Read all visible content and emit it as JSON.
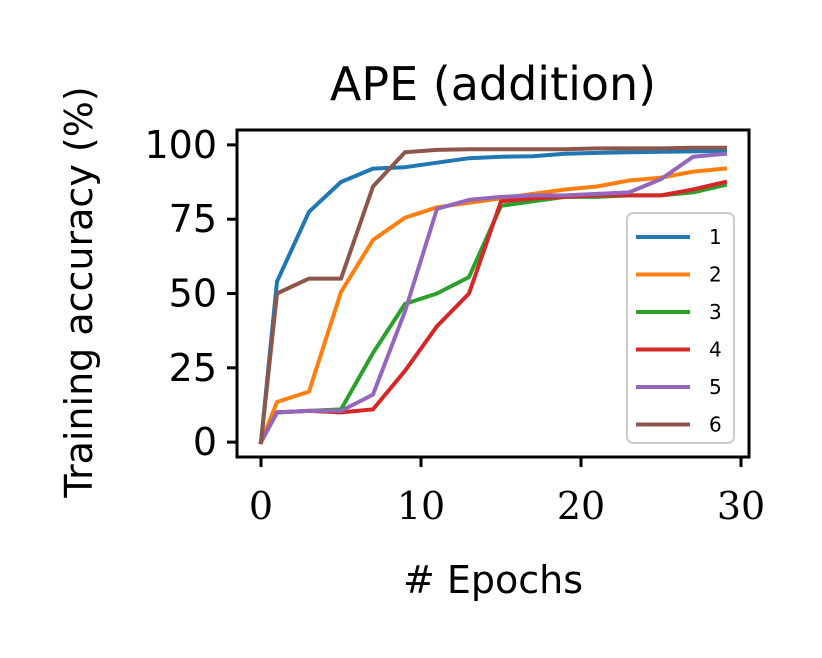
{
  "chart_data": {
    "type": "line",
    "title": "APE (addition)",
    "xlabel": "# Epochs",
    "ylabel": "Training accuracy (%)",
    "xlim": [
      -1.5,
      30.5
    ],
    "ylim": [
      -5,
      105
    ],
    "xticks": [
      0,
      10,
      20,
      30
    ],
    "yticks": [
      0,
      25,
      50,
      75,
      100
    ],
    "grid": false,
    "legend_position": "right",
    "x": [
      0,
      1,
      3,
      5,
      7,
      9,
      11,
      13,
      15,
      17,
      19,
      21,
      23,
      25,
      27,
      29
    ],
    "series": [
      {
        "name": "1",
        "color": "#1f77b4",
        "values": [
          0,
          54,
          77.5,
          87.5,
          92,
          92.5,
          94,
          95.5,
          96,
          96.2,
          97,
          97.3,
          97.5,
          97.7,
          97.8,
          98
        ]
      },
      {
        "name": "2",
        "color": "#ff7f0e",
        "values": [
          0,
          13.5,
          17,
          50.5,
          68,
          75.5,
          79,
          80.5,
          82,
          83.5,
          85,
          86,
          88,
          89,
          91,
          92
        ]
      },
      {
        "name": "3",
        "color": "#2ca02c",
        "values": [
          0,
          10,
          10.5,
          11,
          30,
          46.5,
          50,
          55.5,
          79.5,
          81,
          82.5,
          82.5,
          83,
          83,
          84,
          86.5
        ]
      },
      {
        "name": "4",
        "color": "#d62728",
        "values": [
          0,
          10,
          10.5,
          10,
          11,
          24,
          39,
          50,
          81,
          82,
          82.5,
          83,
          83,
          83,
          85,
          87.5
        ]
      },
      {
        "name": "5",
        "color": "#9467bd",
        "values": [
          0,
          10,
          10.5,
          10.5,
          16,
          44,
          78.5,
          81.5,
          82.5,
          83,
          83,
          83.5,
          84,
          88.5,
          96,
          97
        ]
      },
      {
        "name": "6",
        "color": "#8c564b",
        "values": [
          0,
          50,
          55,
          55,
          86,
          97.5,
          98.3,
          98.5,
          98.5,
          98.5,
          98.5,
          98.8,
          98.8,
          98.8,
          99,
          99
        ]
      }
    ]
  }
}
